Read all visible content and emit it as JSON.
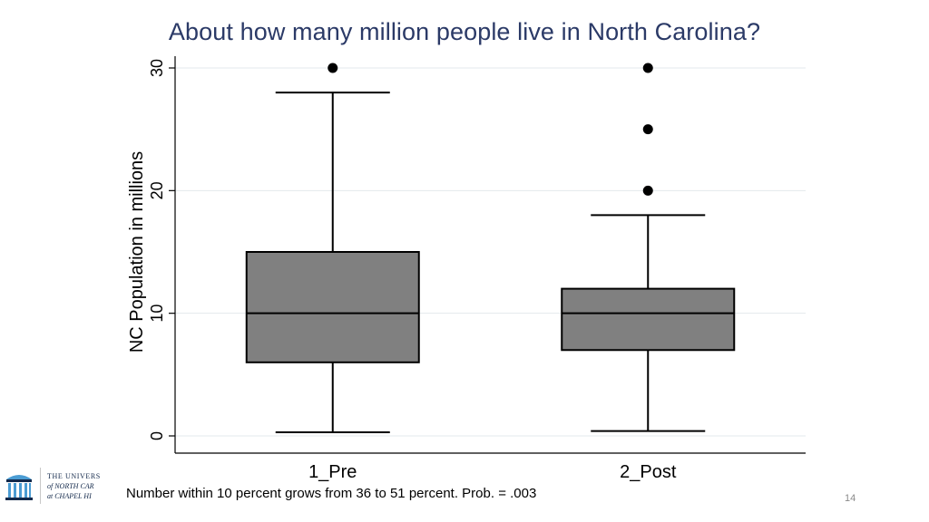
{
  "slide": {
    "title": "About how many million people live in North Carolina?",
    "footnote": "Number within 10 percent grows from 36 to 51 percent. Prob. = .003",
    "page_number": "14"
  },
  "logo": {
    "line1": "THE UNIVERS",
    "line2": "of NORTH CAR",
    "line3": "at CHAPEL HI",
    "icon": "old-well-icon",
    "color": "#13294b"
  },
  "chart_data": {
    "type": "boxplot",
    "ylabel": "NC Population in millions",
    "xlabel": "",
    "ylim": [
      0,
      30
    ],
    "yticks": [
      "0",
      "10",
      "20",
      "30"
    ],
    "grid": true,
    "box_color": "#808080",
    "categories": [
      "1_Pre",
      "2_Post"
    ],
    "series": [
      {
        "category": "1_Pre",
        "whisker_low": 0.3,
        "q1": 6,
        "median": 10,
        "q3": 15,
        "whisker_high": 28,
        "outliers": [
          30
        ]
      },
      {
        "category": "2_Post",
        "whisker_low": 0.4,
        "q1": 7,
        "median": 10,
        "q3": 12,
        "whisker_high": 18,
        "outliers": [
          20,
          25,
          30
        ]
      }
    ]
  }
}
